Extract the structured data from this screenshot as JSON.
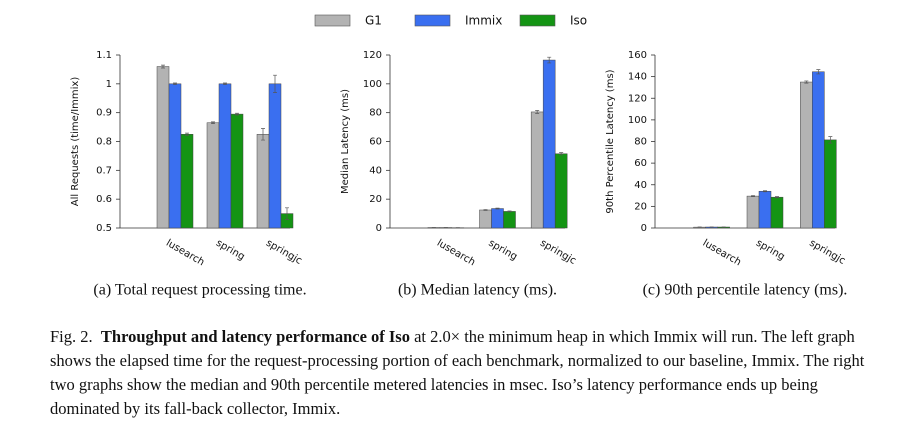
{
  "chart_data": [
    {
      "type": "bar",
      "subtitle": "(a) Total request processing time.",
      "ylabel": "All Requests (time/Immix)",
      "categories": [
        "lusearch",
        "spring",
        "springjc"
      ],
      "series": [
        {
          "name": "G1",
          "color": "#b3b3b3",
          "values": [
            1.06,
            0.865,
            0.825
          ],
          "errors": [
            0.005,
            0.003,
            0.02
          ]
        },
        {
          "name": "Immix",
          "color": "#3a6ff0",
          "values": [
            1.0,
            1.0,
            1.0
          ],
          "errors": [
            0.003,
            0.003,
            0.03
          ]
        },
        {
          "name": "Iso",
          "color": "#149414",
          "values": [
            0.825,
            0.895,
            0.55
          ],
          "errors": [
            0.004,
            0.003,
            0.02
          ]
        }
      ],
      "ylim": [
        0.5,
        1.1
      ],
      "yticks": [
        0.5,
        0.6,
        0.7,
        0.8,
        0.9,
        1,
        1.1
      ]
    },
    {
      "type": "bar",
      "subtitle": "(b) Median latency (ms).",
      "ylabel": "Median Latency (ms)",
      "categories": [
        "lusearch",
        "spring",
        "springjc"
      ],
      "series": [
        {
          "color": "#b3b3b3",
          "values": [
            0.3,
            12.5,
            80.5
          ],
          "errors": [
            0.05,
            0.3,
            1
          ]
        },
        {
          "color": "#3a6ff0",
          "values": [
            0.3,
            13.5,
            116.5
          ],
          "errors": [
            0.05,
            0.3,
            2
          ]
        },
        {
          "color": "#149414",
          "values": [
            0.2,
            11.5,
            51.5
          ],
          "errors": [
            0.05,
            0.3,
            0.8
          ]
        }
      ],
      "ylim": [
        0,
        120
      ],
      "yticks": [
        0,
        20,
        40,
        60,
        80,
        100,
        120
      ]
    },
    {
      "type": "bar",
      "subtitle": "(c) 90th percentile latency (ms).",
      "ylabel": "90th Percentile Latency (ms)",
      "categories": [
        "lusearch",
        "spring",
        "springjc"
      ],
      "series": [
        {
          "color": "#b3b3b3",
          "values": [
            0.8,
            29.5,
            135
          ],
          "errors": [
            0.1,
            0.5,
            1
          ]
        },
        {
          "color": "#3a6ff0",
          "values": [
            0.9,
            34,
            144.5
          ],
          "errors": [
            0.1,
            0.5,
            2
          ]
        },
        {
          "color": "#149414",
          "values": [
            0.9,
            28.5,
            81.5
          ],
          "errors": [
            0.1,
            0.5,
            3
          ]
        }
      ],
      "ylim": [
        0,
        160
      ],
      "yticks": [
        0,
        20,
        40,
        60,
        80,
        100,
        120,
        140,
        160
      ]
    }
  ],
  "caption": {
    "label": "Fig. 2.",
    "title": "Throughput and latency performance of Iso",
    "text": "at 2.0× the minimum heap in which Immix will run. The left graph shows the elapsed time for the request-processing portion of each benchmark, normalized to our baseline, Immix. The right two graphs show the median and 90th percentile metered latencies in msec. Iso’s latency performance ends up being dominated by its fall-back collector, Immix."
  }
}
